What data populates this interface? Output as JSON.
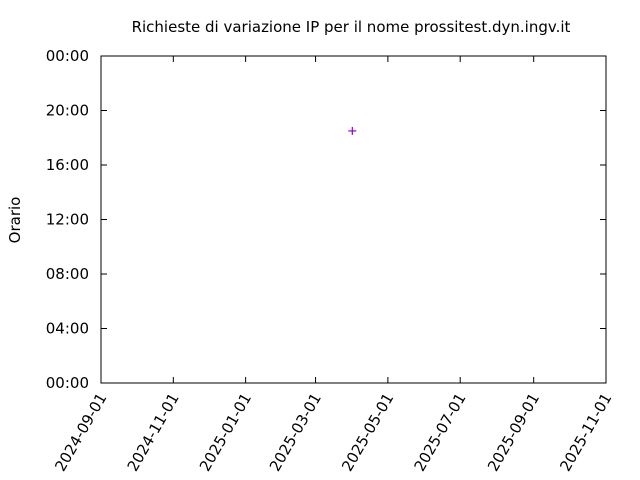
{
  "chart_data": {
    "type": "scatter",
    "title": "Richieste di variazione IP per il nome prossitest.dyn.ingv.it",
    "y_label": "Orario",
    "series": [
      {
        "color": "#9400d3",
        "x": [
          "2025-04-01"
        ],
        "values": [
          18.5
        ]
      }
    ],
    "xlim": [
      "2024-09-01",
      "2025-11-01"
    ],
    "xticks": [
      "2024-09-01",
      "2024-11-01",
      "2025-01-01",
      "2025-03-01",
      "2025-05-01",
      "2025-07-01",
      "2025-09-01",
      "2025-11-01"
    ],
    "ylim": [
      0,
      24
    ],
    "yticks": [
      {
        "value": 0,
        "label": "00:00"
      },
      {
        "value": 4,
        "label": "04:00"
      },
      {
        "value": 8,
        "label": "08:00"
      },
      {
        "value": 12,
        "label": "12:00"
      },
      {
        "value": 16,
        "label": "16:00"
      },
      {
        "value": 20,
        "label": "20:00"
      },
      {
        "value": 24,
        "label": "00:00"
      }
    ],
    "grid": false
  }
}
